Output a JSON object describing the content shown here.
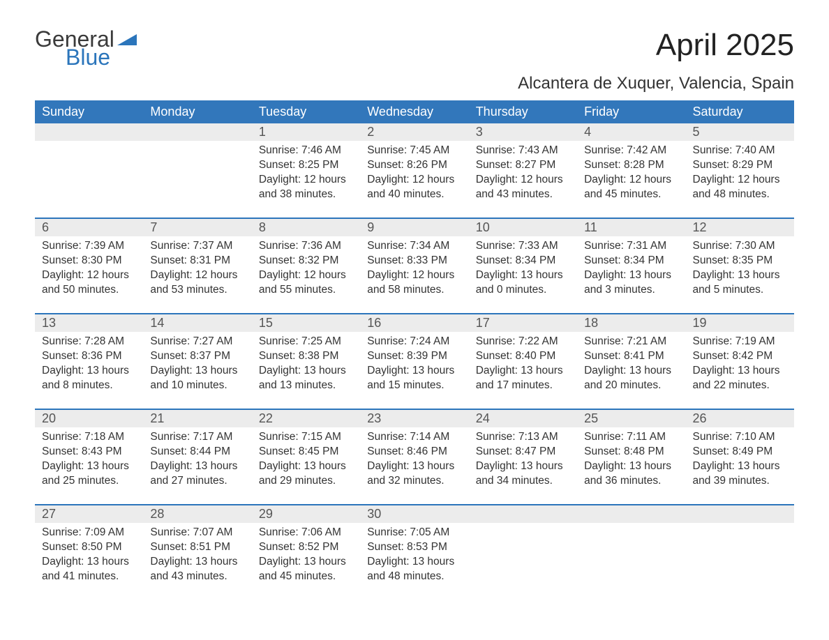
{
  "logo": {
    "general": "General",
    "blue": "Blue",
    "flag_color": "#2b75bb"
  },
  "title": "April 2025",
  "location": "Alcantera de Xuquer, Valencia, Spain",
  "colors": {
    "header_bg": "#3277bb",
    "header_text": "#ffffff",
    "daynum_bg": "#ececec",
    "week_border": "#2b75bb",
    "text": "#333333"
  },
  "dayNames": [
    "Sunday",
    "Monday",
    "Tuesday",
    "Wednesday",
    "Thursday",
    "Friday",
    "Saturday"
  ],
  "weeks": [
    {
      "days": [
        {
          "num": "",
          "lines": []
        },
        {
          "num": "",
          "lines": []
        },
        {
          "num": "1",
          "lines": [
            "Sunrise: 7:46 AM",
            "Sunset: 8:25 PM",
            "Daylight: 12 hours",
            "and 38 minutes."
          ]
        },
        {
          "num": "2",
          "lines": [
            "Sunrise: 7:45 AM",
            "Sunset: 8:26 PM",
            "Daylight: 12 hours",
            "and 40 minutes."
          ]
        },
        {
          "num": "3",
          "lines": [
            "Sunrise: 7:43 AM",
            "Sunset: 8:27 PM",
            "Daylight: 12 hours",
            "and 43 minutes."
          ]
        },
        {
          "num": "4",
          "lines": [
            "Sunrise: 7:42 AM",
            "Sunset: 8:28 PM",
            "Daylight: 12 hours",
            "and 45 minutes."
          ]
        },
        {
          "num": "5",
          "lines": [
            "Sunrise: 7:40 AM",
            "Sunset: 8:29 PM",
            "Daylight: 12 hours",
            "and 48 minutes."
          ]
        }
      ]
    },
    {
      "days": [
        {
          "num": "6",
          "lines": [
            "Sunrise: 7:39 AM",
            "Sunset: 8:30 PM",
            "Daylight: 12 hours",
            "and 50 minutes."
          ]
        },
        {
          "num": "7",
          "lines": [
            "Sunrise: 7:37 AM",
            "Sunset: 8:31 PM",
            "Daylight: 12 hours",
            "and 53 minutes."
          ]
        },
        {
          "num": "8",
          "lines": [
            "Sunrise: 7:36 AM",
            "Sunset: 8:32 PM",
            "Daylight: 12 hours",
            "and 55 minutes."
          ]
        },
        {
          "num": "9",
          "lines": [
            "Sunrise: 7:34 AM",
            "Sunset: 8:33 PM",
            "Daylight: 12 hours",
            "and 58 minutes."
          ]
        },
        {
          "num": "10",
          "lines": [
            "Sunrise: 7:33 AM",
            "Sunset: 8:34 PM",
            "Daylight: 13 hours",
            "and 0 minutes."
          ]
        },
        {
          "num": "11",
          "lines": [
            "Sunrise: 7:31 AM",
            "Sunset: 8:34 PM",
            "Daylight: 13 hours",
            "and 3 minutes."
          ]
        },
        {
          "num": "12",
          "lines": [
            "Sunrise: 7:30 AM",
            "Sunset: 8:35 PM",
            "Daylight: 13 hours",
            "and 5 minutes."
          ]
        }
      ]
    },
    {
      "days": [
        {
          "num": "13",
          "lines": [
            "Sunrise: 7:28 AM",
            "Sunset: 8:36 PM",
            "Daylight: 13 hours",
            "and 8 minutes."
          ]
        },
        {
          "num": "14",
          "lines": [
            "Sunrise: 7:27 AM",
            "Sunset: 8:37 PM",
            "Daylight: 13 hours",
            "and 10 minutes."
          ]
        },
        {
          "num": "15",
          "lines": [
            "Sunrise: 7:25 AM",
            "Sunset: 8:38 PM",
            "Daylight: 13 hours",
            "and 13 minutes."
          ]
        },
        {
          "num": "16",
          "lines": [
            "Sunrise: 7:24 AM",
            "Sunset: 8:39 PM",
            "Daylight: 13 hours",
            "and 15 minutes."
          ]
        },
        {
          "num": "17",
          "lines": [
            "Sunrise: 7:22 AM",
            "Sunset: 8:40 PM",
            "Daylight: 13 hours",
            "and 17 minutes."
          ]
        },
        {
          "num": "18",
          "lines": [
            "Sunrise: 7:21 AM",
            "Sunset: 8:41 PM",
            "Daylight: 13 hours",
            "and 20 minutes."
          ]
        },
        {
          "num": "19",
          "lines": [
            "Sunrise: 7:19 AM",
            "Sunset: 8:42 PM",
            "Daylight: 13 hours",
            "and 22 minutes."
          ]
        }
      ]
    },
    {
      "days": [
        {
          "num": "20",
          "lines": [
            "Sunrise: 7:18 AM",
            "Sunset: 8:43 PM",
            "Daylight: 13 hours",
            "and 25 minutes."
          ]
        },
        {
          "num": "21",
          "lines": [
            "Sunrise: 7:17 AM",
            "Sunset: 8:44 PM",
            "Daylight: 13 hours",
            "and 27 minutes."
          ]
        },
        {
          "num": "22",
          "lines": [
            "Sunrise: 7:15 AM",
            "Sunset: 8:45 PM",
            "Daylight: 13 hours",
            "and 29 minutes."
          ]
        },
        {
          "num": "23",
          "lines": [
            "Sunrise: 7:14 AM",
            "Sunset: 8:46 PM",
            "Daylight: 13 hours",
            "and 32 minutes."
          ]
        },
        {
          "num": "24",
          "lines": [
            "Sunrise: 7:13 AM",
            "Sunset: 8:47 PM",
            "Daylight: 13 hours",
            "and 34 minutes."
          ]
        },
        {
          "num": "25",
          "lines": [
            "Sunrise: 7:11 AM",
            "Sunset: 8:48 PM",
            "Daylight: 13 hours",
            "and 36 minutes."
          ]
        },
        {
          "num": "26",
          "lines": [
            "Sunrise: 7:10 AM",
            "Sunset: 8:49 PM",
            "Daylight: 13 hours",
            "and 39 minutes."
          ]
        }
      ]
    },
    {
      "days": [
        {
          "num": "27",
          "lines": [
            "Sunrise: 7:09 AM",
            "Sunset: 8:50 PM",
            "Daylight: 13 hours",
            "and 41 minutes."
          ]
        },
        {
          "num": "28",
          "lines": [
            "Sunrise: 7:07 AM",
            "Sunset: 8:51 PM",
            "Daylight: 13 hours",
            "and 43 minutes."
          ]
        },
        {
          "num": "29",
          "lines": [
            "Sunrise: 7:06 AM",
            "Sunset: 8:52 PM",
            "Daylight: 13 hours",
            "and 45 minutes."
          ]
        },
        {
          "num": "30",
          "lines": [
            "Sunrise: 7:05 AM",
            "Sunset: 8:53 PM",
            "Daylight: 13 hours",
            "and 48 minutes."
          ]
        },
        {
          "num": "",
          "lines": []
        },
        {
          "num": "",
          "lines": []
        },
        {
          "num": "",
          "lines": []
        }
      ]
    }
  ]
}
